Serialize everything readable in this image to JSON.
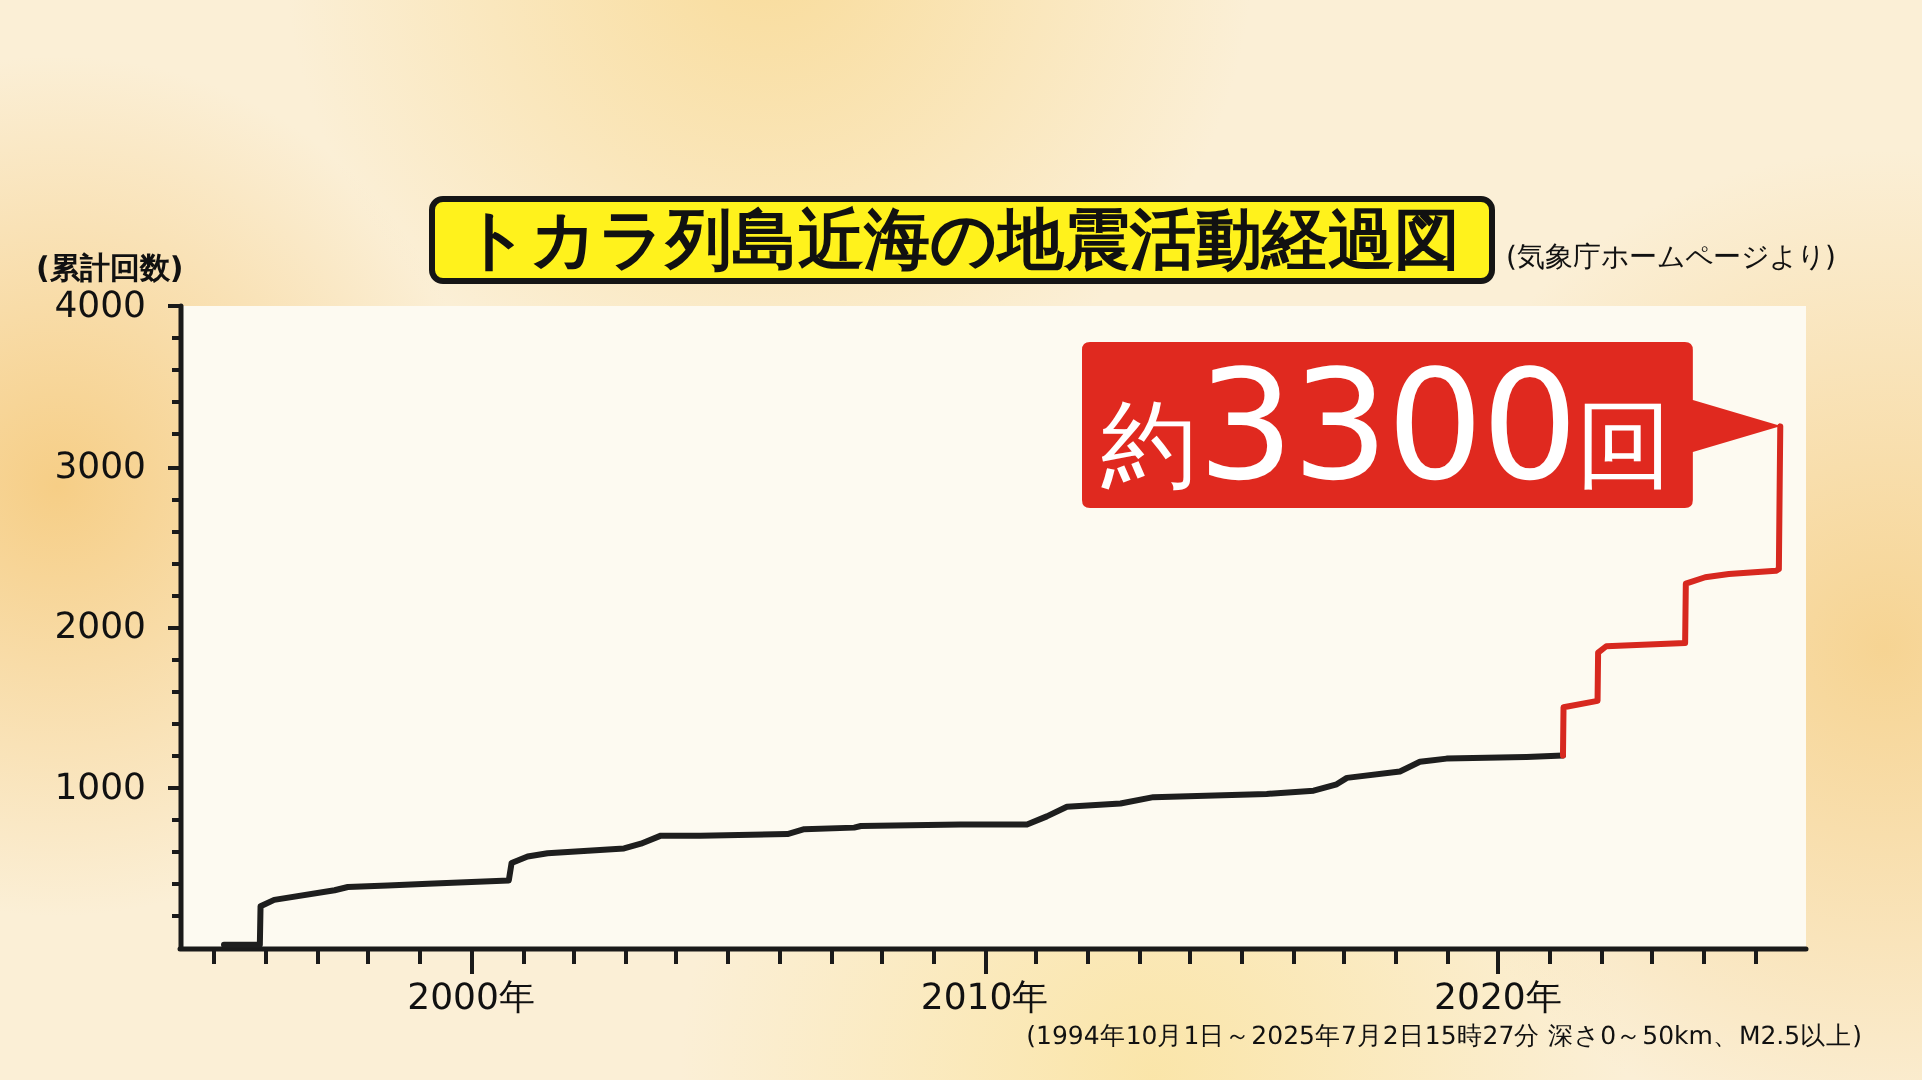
{
  "chart_data": {
    "type": "line",
    "title": "トカラ列島近海の地震活動経過図",
    "ylabel": "(累計回数)",
    "annotations": [
      "(気象庁ホームページより)",
      "(1994年10月1日～2025年7月2日15時27分 深さ0～50km、M2.5以上)",
      {
        "text": "約3300回",
        "x": "2025-07-02",
        "y": 3250
      }
    ],
    "series": [
      {
        "color": "#1e1e1e",
        "x": [
          "1995-03-10",
          "1995-11-20",
          "1995-11-25",
          "1996-03-01",
          "1997-05-05",
          "1997-08-07",
          "1998-05-18",
          "1999-03-01",
          "2000-09-25",
          "2000-10-15",
          "2001-02-06",
          "2001-06-28",
          "2002-12-24",
          "2003-04-23",
          "2003-09-12",
          "2004-06-20",
          "2006-03-01",
          "2006-06-28",
          "2007-06-18",
          "2007-08-05",
          "2009-07-13",
          "2010-10-30",
          "2011-03-20",
          "2011-08-10",
          "2012-08-25",
          "2013-04-16",
          "2015-07-01",
          "2016-05-30",
          "2016-11-10",
          "2017-01-22",
          "2018-02-03",
          "2018-06-25",
          "2019-01-01",
          "2020-07-23",
          "2021-04-08"
        ],
        "values": [
          20,
          20,
          260,
          300,
          360,
          380,
          390,
          400,
          420,
          530,
          570,
          590,
          620,
          650,
          700,
          700,
          710,
          740,
          750,
          760,
          770,
          770,
          820,
          880,
          900,
          940,
          960,
          980,
          1020,
          1060,
          1100,
          1160,
          1180,
          1190,
          1200
        ]
      },
      {
        "color": "#d7281f",
        "x": [
          "2021-04-08",
          "2021-04-12",
          "2021-12-10",
          "2021-12-14",
          "2022-02-10",
          "2023-08-25",
          "2023-08-30",
          "2024-01-15",
          "2024-07-01",
          "2025-06-01",
          "2025-06-22",
          "2025-06-28",
          "2025-07-02"
        ],
        "values": [
          1200,
          1500,
          1540,
          1840,
          1880,
          1900,
          2270,
          2310,
          2330,
          2350,
          2360,
          2910,
          3250
        ]
      }
    ],
    "xlim": [
      "1994-05",
      "2026-01"
    ],
    "xticks": [
      {
        "value": "1995",
        "label": null
      },
      {
        "value": "1996",
        "label": null
      },
      {
        "value": "1997",
        "label": null
      },
      {
        "value": "1998",
        "label": null
      },
      {
        "value": "1999",
        "label": null
      },
      {
        "value": "2000",
        "label": "2000年"
      },
      {
        "value": "2001",
        "label": null
      },
      {
        "value": "2002",
        "label": null
      },
      {
        "value": "2003",
        "label": null
      },
      {
        "value": "2004",
        "label": null
      },
      {
        "value": "2005",
        "label": null
      },
      {
        "value": "2006",
        "label": null
      },
      {
        "value": "2007",
        "label": null
      },
      {
        "value": "2008",
        "label": null
      },
      {
        "value": "2009",
        "label": null
      },
      {
        "value": "2010",
        "label": "2010年"
      },
      {
        "value": "2011",
        "label": null
      },
      {
        "value": "2012",
        "label": null
      },
      {
        "value": "2013",
        "label": null
      },
      {
        "value": "2014",
        "label": null
      },
      {
        "value": "2015",
        "label": null
      },
      {
        "value": "2016",
        "label": null
      },
      {
        "value": "2017",
        "label": null
      },
      {
        "value": "2018",
        "label": null
      },
      {
        "value": "2019",
        "label": null
      },
      {
        "value": "2020",
        "label": "2020年"
      },
      {
        "value": "2021",
        "label": null
      },
      {
        "value": "2022",
        "label": null
      },
      {
        "value": "2023",
        "label": null
      },
      {
        "value": "2024",
        "label": null
      },
      {
        "value": "2025",
        "label": null
      }
    ],
    "ylim": [
      0,
      4000
    ],
    "yticks": [
      {
        "value": 200,
        "label": null
      },
      {
        "value": 400,
        "label": null
      },
      {
        "value": 600,
        "label": null
      },
      {
        "value": 800,
        "label": null
      },
      1000,
      {
        "value": 1200,
        "label": null
      },
      {
        "value": 1400,
        "label": null
      },
      {
        "value": 1600,
        "label": null
      },
      {
        "value": 1800,
        "label": null
      },
      2000,
      {
        "value": 2200,
        "label": null
      },
      {
        "value": 2400,
        "label": null
      },
      {
        "value": 2600,
        "label": null
      },
      {
        "value": 2800,
        "label": null
      },
      3000,
      {
        "value": 3200,
        "label": null
      },
      {
        "value": 3400,
        "label": null
      },
      {
        "value": 3600,
        "label": null
      },
      {
        "value": 3800,
        "label": null
      },
      4000
    ],
    "marker": "none",
    "line_style": "solid"
  }
}
